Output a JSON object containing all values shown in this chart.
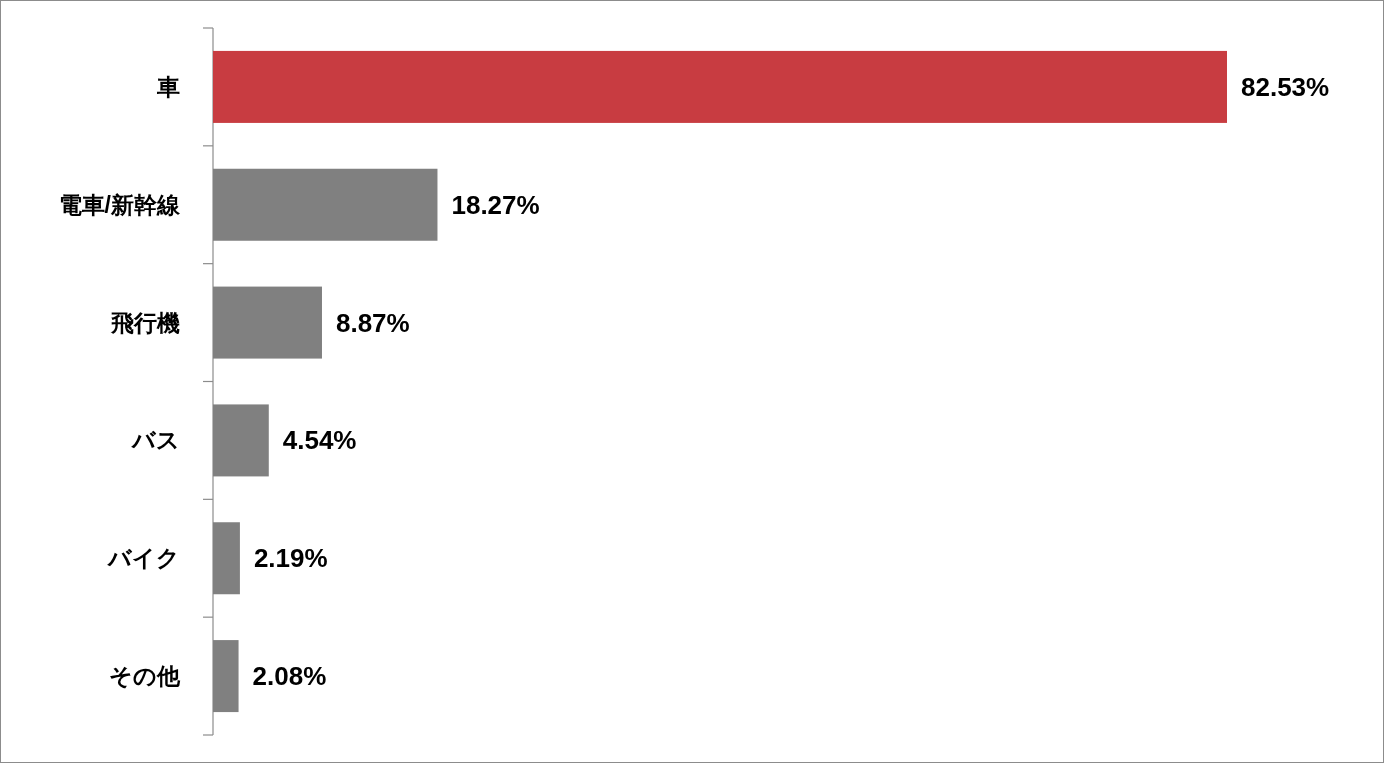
{
  "chart_data": {
    "type": "bar",
    "orientation": "horizontal",
    "categories": [
      "車",
      "電車/新幹線",
      "飛行機",
      "バス",
      "バイク",
      "その他"
    ],
    "values": [
      82.53,
      18.27,
      8.87,
      4.54,
      2.19,
      2.08
    ],
    "colors": [
      "#c83c41",
      "#808080",
      "#808080",
      "#808080",
      "#808080",
      "#808080"
    ],
    "value_labels": [
      "82.53%",
      "18.27%",
      "8.87%",
      "4.54%",
      "2.19%",
      "2.08%"
    ]
  }
}
